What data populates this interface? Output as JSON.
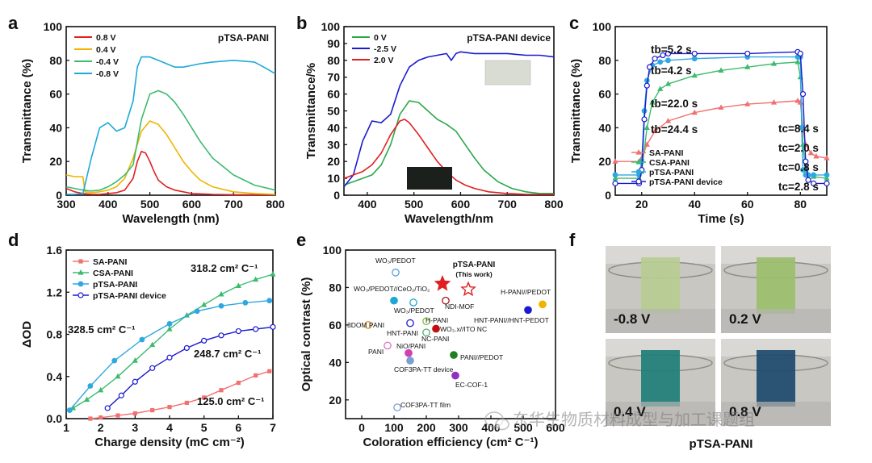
{
  "labels": {
    "a": "a",
    "b": "b",
    "c": "c",
    "d": "d",
    "e": "e",
    "f": "f",
    "f_caption": "pTSA-PANI",
    "watermark": "东华生物质材料成型与加工课题组"
  },
  "colors": {
    "red": "#e02020",
    "yellow": "#f0b400",
    "green": "#2aa84a",
    "cyan": "#1ea8d8",
    "blue": "#1a1ad0",
    "salmon": "#f27070",
    "seagreen": "#3dbb6d",
    "sky": "#2fa8e0"
  },
  "chart_data": [
    {
      "id": "a",
      "type": "line",
      "title": "pTSA-PANI",
      "xlabel": "Wavelength (nm)",
      "ylabel": "Transmittance (%)",
      "xlim": [
        300,
        800
      ],
      "ylim": [
        0,
        100
      ],
      "xticks": [
        "300",
        "400",
        "500",
        "600",
        "700",
        "800"
      ],
      "yticks": [
        "0",
        "20",
        "40",
        "60",
        "80",
        "100"
      ],
      "series": [
        {
          "name": "0.8 V",
          "color": "#e02020",
          "x": [
            300,
            320,
            340,
            360,
            380,
            400,
            420,
            440,
            460,
            470,
            480,
            490,
            500,
            510,
            520,
            540,
            560,
            580,
            600,
            650,
            700,
            750,
            800
          ],
          "y": [
            4,
            2,
            1,
            0.5,
            0.5,
            1,
            1.5,
            3,
            10,
            20,
            26,
            25,
            20,
            14,
            9,
            5,
            3,
            2,
            1,
            0.5,
            0.3,
            0.3,
            0.3
          ]
        },
        {
          "name": "0.4 V",
          "color": "#f0b400",
          "x": [
            300,
            320,
            340,
            345,
            360,
            380,
            400,
            420,
            440,
            460,
            480,
            500,
            520,
            540,
            560,
            580,
            600,
            620,
            650,
            700,
            750,
            800
          ],
          "y": [
            12,
            11,
            11,
            2,
            1.5,
            2,
            3,
            5,
            10,
            22,
            38,
            44,
            42,
            36,
            28,
            20,
            14,
            9,
            5,
            2,
            1,
            0.5
          ]
        },
        {
          "name": "-0.4 V",
          "color": "#3dbb6d",
          "x": [
            300,
            320,
            340,
            360,
            380,
            400,
            420,
            440,
            460,
            480,
            500,
            520,
            540,
            560,
            580,
            600,
            620,
            650,
            700,
            750,
            800
          ],
          "y": [
            5,
            4,
            3,
            2.5,
            3,
            5,
            8,
            12,
            18,
            45,
            60,
            62,
            60,
            55,
            48,
            40,
            32,
            22,
            12,
            6,
            3
          ]
        },
        {
          "name": "-0.8 V",
          "color": "#1ea8d8",
          "x": [
            300,
            320,
            340,
            360,
            380,
            400,
            420,
            440,
            460,
            470,
            480,
            500,
            520,
            540,
            560,
            580,
            600,
            620,
            650,
            700,
            750,
            780,
            800
          ],
          "y": [
            0.5,
            0.5,
            1,
            22,
            40,
            43,
            38,
            40,
            56,
            76,
            82,
            82,
            80,
            78,
            76,
            76,
            77,
            78,
            79,
            80,
            79,
            75,
            72
          ]
        }
      ]
    },
    {
      "id": "b",
      "type": "line",
      "title": "pTSA-PANI device",
      "xlabel": "Wavelength/nm",
      "ylabel": "Transmittance/%",
      "xlim": [
        350,
        800
      ],
      "ylim": [
        0,
        100
      ],
      "xticks": [
        "400",
        "500",
        "600",
        "700",
        "800"
      ],
      "yticks": [
        "0",
        "10",
        "20",
        "30",
        "40",
        "50",
        "60",
        "70",
        "80",
        "90",
        "100"
      ],
      "series": [
        {
          "name": "0 V",
          "color": "#2aa84a",
          "x": [
            350,
            370,
            390,
            410,
            430,
            450,
            470,
            490,
            510,
            530,
            550,
            570,
            590,
            610,
            630,
            650,
            680,
            710,
            740,
            770,
            800
          ],
          "y": [
            6,
            8,
            10,
            12,
            18,
            30,
            48,
            56,
            55,
            50,
            45,
            42,
            38,
            30,
            22,
            15,
            8,
            4,
            2,
            1,
            1
          ]
        },
        {
          "name": "-2.5 V",
          "color": "#1a1ad0",
          "x": [
            350,
            370,
            390,
            410,
            430,
            450,
            470,
            490,
            510,
            530,
            550,
            570,
            580,
            590,
            600,
            630,
            660,
            700,
            740,
            770,
            800
          ],
          "y": [
            5,
            12,
            32,
            44,
            43,
            48,
            65,
            76,
            80,
            82,
            83,
            84,
            80,
            84,
            85,
            84,
            84,
            84,
            83,
            83,
            82
          ]
        },
        {
          "name": "2.0 V",
          "color": "#e02020",
          "x": [
            350,
            370,
            390,
            410,
            430,
            450,
            470,
            480,
            490,
            510,
            530,
            550,
            570,
            590,
            610,
            630,
            660,
            700,
            740,
            800
          ],
          "y": [
            10,
            12,
            14,
            18,
            25,
            36,
            44,
            45,
            43,
            36,
            28,
            20,
            14,
            9,
            6,
            4,
            2,
            1,
            0.5,
            0.5
          ]
        }
      ]
    },
    {
      "id": "c",
      "type": "line",
      "xlabel": "Time (s)",
      "ylabel": "Transmittance (%)",
      "xlim": [
        10,
        90
      ],
      "ylim": [
        0,
        100
      ],
      "xticks": [
        "20",
        "40",
        "60",
        "80"
      ],
      "yticks": [
        "0",
        "20",
        "40",
        "60",
        "80",
        "100"
      ],
      "annotations": [
        {
          "text": "tb=5.2 s",
          "color": "#1a1ad0"
        },
        {
          "text": "tb=4.2 s",
          "color": "#1ea8d8"
        },
        {
          "text": "tb=22.0 s",
          "color": "#3dbb6d"
        },
        {
          "text": "tb=24.4 s",
          "color": "#f27070"
        },
        {
          "text": "tc=8.4 s",
          "color": "#f27070"
        },
        {
          "text": "tc=2.0 s",
          "color": "#3dbb6d"
        },
        {
          "text": "tc=0.8 s",
          "color": "#1ea8d8"
        },
        {
          "text": "tc=2.8 s",
          "color": "#1a1ad0"
        }
      ],
      "series": [
        {
          "name": "SA-PANI",
          "color": "#f27070",
          "x": [
            10,
            19,
            20,
            22,
            25,
            30,
            40,
            50,
            60,
            70,
            79,
            80,
            81,
            82,
            84,
            86,
            90
          ],
          "y": [
            20,
            20,
            22,
            30,
            38,
            44,
            49,
            52,
            54,
            55,
            56,
            55,
            40,
            30,
            25,
            23,
            22
          ]
        },
        {
          "name": "CSA-PANI",
          "color": "#3dbb6d",
          "x": [
            10,
            19,
            20,
            22,
            24,
            27,
            30,
            40,
            50,
            60,
            70,
            79,
            80,
            81,
            82,
            83,
            85,
            90
          ],
          "y": [
            10,
            10,
            14,
            40,
            55,
            63,
            66,
            71,
            74,
            76,
            78,
            79,
            70,
            30,
            15,
            12,
            11,
            10
          ]
        },
        {
          "name": "pTSA-PANI",
          "color": "#2fa8e0",
          "x": [
            10,
            19,
            20,
            21,
            22,
            24,
            27,
            30,
            40,
            60,
            79,
            80,
            80.5,
            81,
            82,
            83,
            85,
            90
          ],
          "y": [
            12,
            12,
            20,
            50,
            68,
            77,
            79,
            80,
            81,
            82,
            82,
            82,
            40,
            15,
            12,
            12,
            12,
            12
          ]
        },
        {
          "name": "pTSA-PANI device",
          "color": "#1a1ad0",
          "x": [
            10,
            19,
            20,
            21,
            22,
            23,
            25,
            28,
            30,
            40,
            60,
            79,
            80,
            81,
            82,
            83,
            85,
            90
          ],
          "y": [
            7,
            7,
            15,
            45,
            65,
            76,
            81,
            83,
            84,
            84,
            84,
            85,
            84,
            60,
            20,
            9,
            7,
            7
          ]
        }
      ]
    },
    {
      "id": "d",
      "type": "line",
      "xlabel": "Charge density (mC cm⁻²)",
      "ylabel": "ΔOD",
      "xlim": [
        1,
        7
      ],
      "ylim": [
        0,
        1.6
      ],
      "xticks": [
        "1",
        "2",
        "3",
        "4",
        "5",
        "6",
        "7"
      ],
      "yticks": [
        "0.0",
        "0.4",
        "0.8",
        "1.2",
        "1.6"
      ],
      "annotations": [
        {
          "text": "318.2 cm² C⁻¹",
          "color": "#3dbb6d"
        },
        {
          "text": "328.5 cm² C⁻¹",
          "color": "#2fa8e0"
        },
        {
          "text": "248.7 cm² C⁻¹",
          "color": "#1a1ad0"
        },
        {
          "text": "125.0 cm² C⁻¹",
          "color": "#f27070"
        }
      ],
      "series": [
        {
          "name": "SA-PANI",
          "color": "#f27070",
          "x": [
            1.7,
            2,
            2.5,
            3,
            3.5,
            4,
            4.5,
            5,
            5.5,
            6,
            6.5,
            6.9
          ],
          "y": [
            0.0,
            0.01,
            0.03,
            0.05,
            0.08,
            0.11,
            0.15,
            0.2,
            0.27,
            0.34,
            0.41,
            0.45
          ]
        },
        {
          "name": "CSA-PANI",
          "color": "#3dbb6d",
          "x": [
            1.2,
            1.6,
            2,
            2.5,
            3,
            3.5,
            4,
            4.5,
            5,
            5.5,
            6,
            6.5,
            7
          ],
          "y": [
            0.1,
            0.18,
            0.27,
            0.4,
            0.55,
            0.7,
            0.85,
            0.98,
            1.08,
            1.18,
            1.26,
            1.32,
            1.37
          ]
        },
        {
          "name": "pTSA-PANI",
          "color": "#2fa8e0",
          "x": [
            1.1,
            1.7,
            2.4,
            3.2,
            4,
            4.8,
            5.5,
            6.2,
            6.9
          ],
          "y": [
            0.08,
            0.31,
            0.55,
            0.75,
            0.9,
            1.02,
            1.07,
            1.1,
            1.12
          ]
        },
        {
          "name": "pTSA-PANI device",
          "color": "#1a1ad0",
          "x": [
            2.2,
            2.6,
            3,
            3.5,
            4,
            4.5,
            5,
            5.5,
            6,
            6.5,
            7
          ],
          "y": [
            0.1,
            0.22,
            0.35,
            0.48,
            0.58,
            0.67,
            0.74,
            0.79,
            0.83,
            0.85,
            0.87
          ]
        }
      ]
    },
    {
      "id": "e",
      "type": "scatter",
      "xlabel": "Coloration efficiency (cm² C⁻¹)",
      "ylabel": "Optical contrast (%)",
      "xlim": [
        -50,
        600
      ],
      "ylim": [
        10,
        100
      ],
      "xticks": [
        "0",
        "100",
        "200",
        "300",
        "400",
        "500",
        "600"
      ],
      "yticks": [
        "20",
        "40",
        "60",
        "80",
        "100"
      ],
      "points": [
        {
          "label": "WO₃/PEDOT",
          "x": 105,
          "y": 88,
          "color": "#5aa0e0",
          "fill": false
        },
        {
          "label": "WO₃/PEDOT//CeO₂/TiO₂",
          "x": 100,
          "y": 73,
          "color": "#1ea8d8",
          "fill": true
        },
        {
          "label": "WO₃/PEDOT",
          "x": 160,
          "y": 72,
          "color": "#1ea8d8",
          "fill": false
        },
        {
          "label": "pTSA-PANI (This work)",
          "x": 250,
          "y": 82,
          "color": "#e02020",
          "fill": true,
          "star": true
        },
        {
          "label": "pTSA-PANI (This work)",
          "x": 330,
          "y": 79,
          "color": "#e02020",
          "fill": false,
          "star": true
        },
        {
          "label": "NDI-MOF",
          "x": 260,
          "y": 73,
          "color": "#a01818",
          "fill": false
        },
        {
          "label": "H-PANI",
          "x": 200,
          "y": 62,
          "color": "#7cc030",
          "fill": false
        },
        {
          "label": "3DOM PANI",
          "x": 20,
          "y": 60,
          "color": "#e09030",
          "fill": false
        },
        {
          "label": "HNT-PANI",
          "x": 150,
          "y": 61,
          "color": "#1a1ad0",
          "fill": false
        },
        {
          "label": "WO₃.x//ITO NC",
          "x": 230,
          "y": 58,
          "color": "#c01010",
          "fill": true
        },
        {
          "label": "NC-PANI",
          "x": 200,
          "y": 56,
          "color": "#4ab070",
          "fill": false
        },
        {
          "label": "H-PANI//PEDOT",
          "x": 560,
          "y": 71,
          "color": "#f0b400",
          "fill": true
        },
        {
          "label": "HNT-PANI//HNT-PEDOT",
          "x": 515,
          "y": 68,
          "color": "#1a1ad0",
          "fill": true
        },
        {
          "label": "PANI",
          "x": 80,
          "y": 49,
          "color": "#e070c0",
          "fill": false
        },
        {
          "label": "NiO/PANI",
          "x": 145,
          "y": 45,
          "color": "#d040b0",
          "fill": true
        },
        {
          "label": "COF3PA-TT device",
          "x": 150,
          "y": 41,
          "color": "#7aa0d0",
          "fill": true
        },
        {
          "label": "PANI//PEDOT",
          "x": 285,
          "y": 44,
          "color": "#208020",
          "fill": true
        },
        {
          "label": "EC-COF-1",
          "x": 290,
          "y": 33,
          "color": "#9030c0",
          "fill": true
        },
        {
          "label": "COF3PA-TT film",
          "x": 110,
          "y": 16,
          "color": "#7aa0d0",
          "fill": false
        }
      ]
    }
  ],
  "photos": [
    {
      "label": "-0.8 V",
      "color": "#b9cc92"
    },
    {
      "label": "0.2 V",
      "color": "#9bbe6c"
    },
    {
      "label": "0.4 V",
      "color": "#1f7e78"
    },
    {
      "label": "0.8 V",
      "color": "#1d4a6e"
    }
  ]
}
